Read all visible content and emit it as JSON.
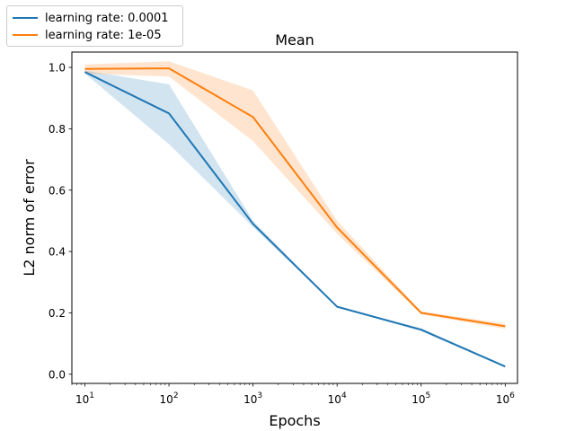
{
  "chart_data": {
    "type": "line",
    "title": "Mean",
    "xlabel": "Epochs",
    "ylabel": "L2 norm of error",
    "xscale": "log",
    "xlim": [
      7,
      1400000
    ],
    "ylim": [
      -0.03,
      1.05
    ],
    "x": [
      10,
      100,
      1000,
      10000,
      100000,
      1000000
    ],
    "xtick_labels": [
      {
        "base": "10",
        "exp": "1"
      },
      {
        "base": "10",
        "exp": "2"
      },
      {
        "base": "10",
        "exp": "3"
      },
      {
        "base": "10",
        "exp": "4"
      },
      {
        "base": "10",
        "exp": "5"
      },
      {
        "base": "10",
        "exp": "6"
      }
    ],
    "yticks": [
      0.0,
      0.2,
      0.4,
      0.6,
      0.8,
      1.0
    ],
    "ytick_labels": [
      "0.0",
      "0.2",
      "0.4",
      "0.6",
      "0.8",
      "1.0"
    ],
    "grid": false,
    "legend_position": "top-left, outside axes",
    "series": [
      {
        "name": "learning rate: 0.0001",
        "color": "#1f77b4",
        "values": [
          0.985,
          0.85,
          0.49,
          0.22,
          0.145,
          0.025
        ],
        "band_upper": [
          0.99,
          0.945,
          0.5,
          0.22,
          0.15,
          0.027
        ],
        "band_lower": [
          0.98,
          0.75,
          0.48,
          0.218,
          0.14,
          0.023
        ]
      },
      {
        "name": "learning rate: 1e-05",
        "color": "#ff7f0e",
        "values": [
          0.995,
          0.997,
          0.838,
          0.478,
          0.2,
          0.156
        ],
        "band_upper": [
          1.01,
          1.02,
          0.925,
          0.5,
          0.205,
          0.165
        ],
        "band_lower": [
          0.98,
          0.97,
          0.76,
          0.458,
          0.195,
          0.148
        ]
      }
    ]
  }
}
